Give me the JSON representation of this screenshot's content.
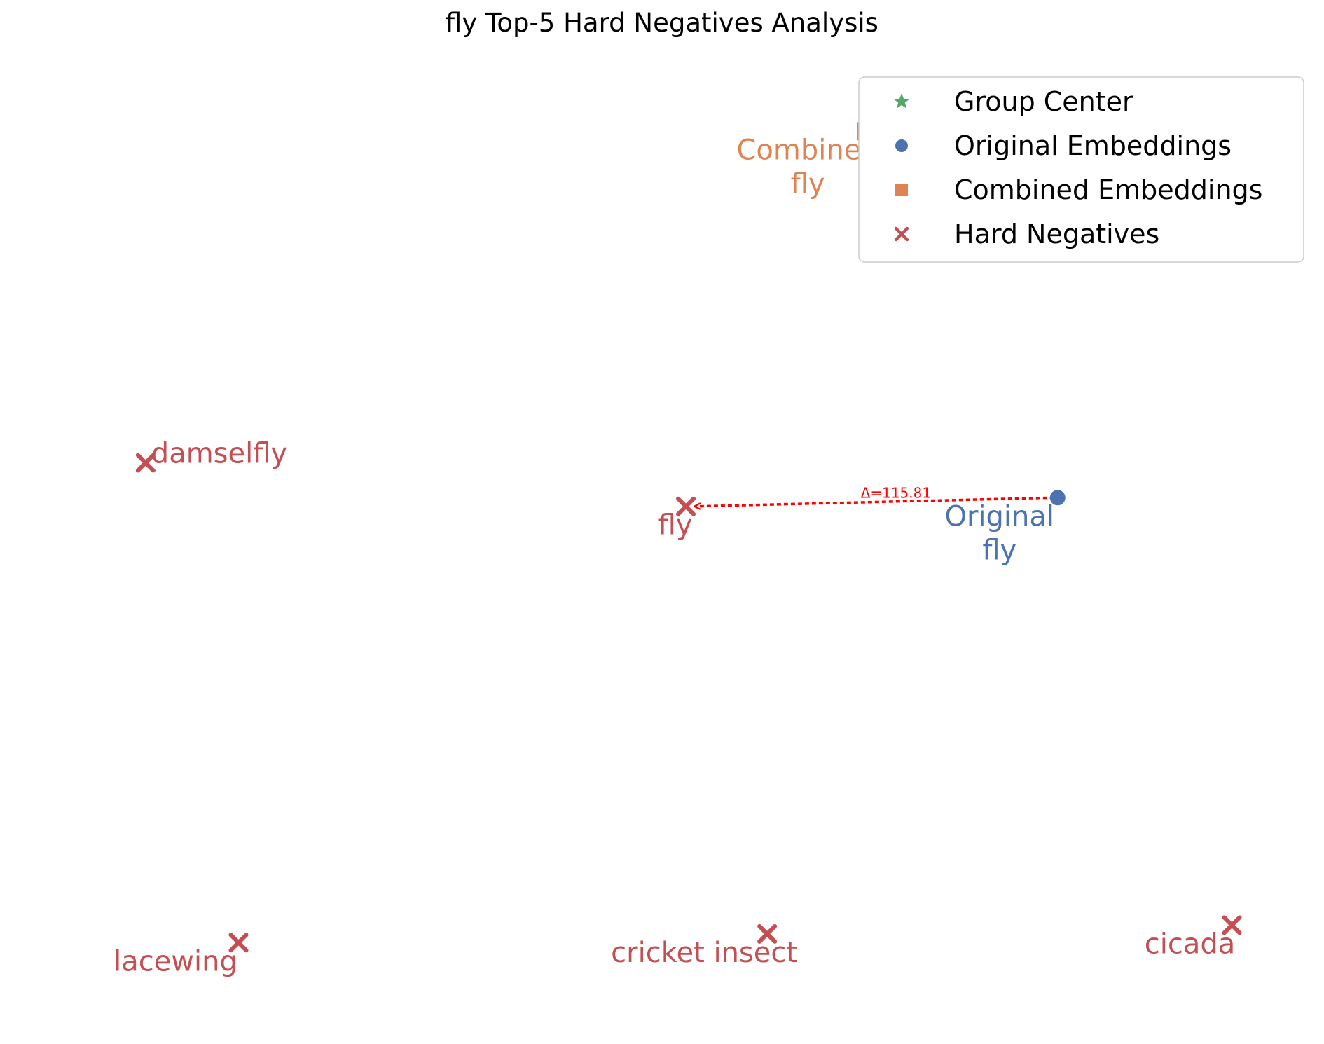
{
  "chart_data": {
    "type": "scatter",
    "title": "fly Top-5 Hard Negatives Analysis",
    "xlabel": "",
    "ylabel": "",
    "axes_visible": false,
    "grid": false,
    "legend_position": "top-right",
    "legend": [
      {
        "label": "Group Center",
        "marker": "star",
        "color": "#55a868"
      },
      {
        "label": "Original Embeddings",
        "marker": "circle",
        "color": "#4c72b0"
      },
      {
        "label": "Combined Embeddings",
        "marker": "square",
        "color": "#dd8452"
      },
      {
        "label": "Hard Negatives",
        "marker": "x",
        "color": "#c44e52"
      }
    ],
    "points": [
      {
        "group": "Combined Embeddings",
        "label": "Combined\nfly",
        "x": 0.37,
        "y": 0.97
      },
      {
        "group": "Original Embeddings",
        "label": "Original\nfly",
        "x": 0.7,
        "y": 0.55
      },
      {
        "group": "Hard Negatives",
        "label": "fly",
        "x": 0.06,
        "y": 0.54
      },
      {
        "group": "Hard Negatives",
        "label": "damselfly",
        "x": -0.87,
        "y": 0.59
      },
      {
        "group": "Hard Negatives",
        "label": "lacewing",
        "x": -0.71,
        "y": 0.04
      },
      {
        "group": "Hard Negatives",
        "label": "cricket insect",
        "x": 0.2,
        "y": 0.05
      },
      {
        "group": "Hard Negatives",
        "label": "cicada",
        "x": 1.0,
        "y": 0.06
      }
    ],
    "xlim": [
      -1.0,
      1.05
    ],
    "ylim": [
      -0.02,
      1.0
    ],
    "annotations": [
      {
        "type": "arrow",
        "from": "Original\nfly",
        "to": "fly",
        "text": "Δ=115.81",
        "color": "#ff0000",
        "style": "dotted"
      }
    ]
  }
}
